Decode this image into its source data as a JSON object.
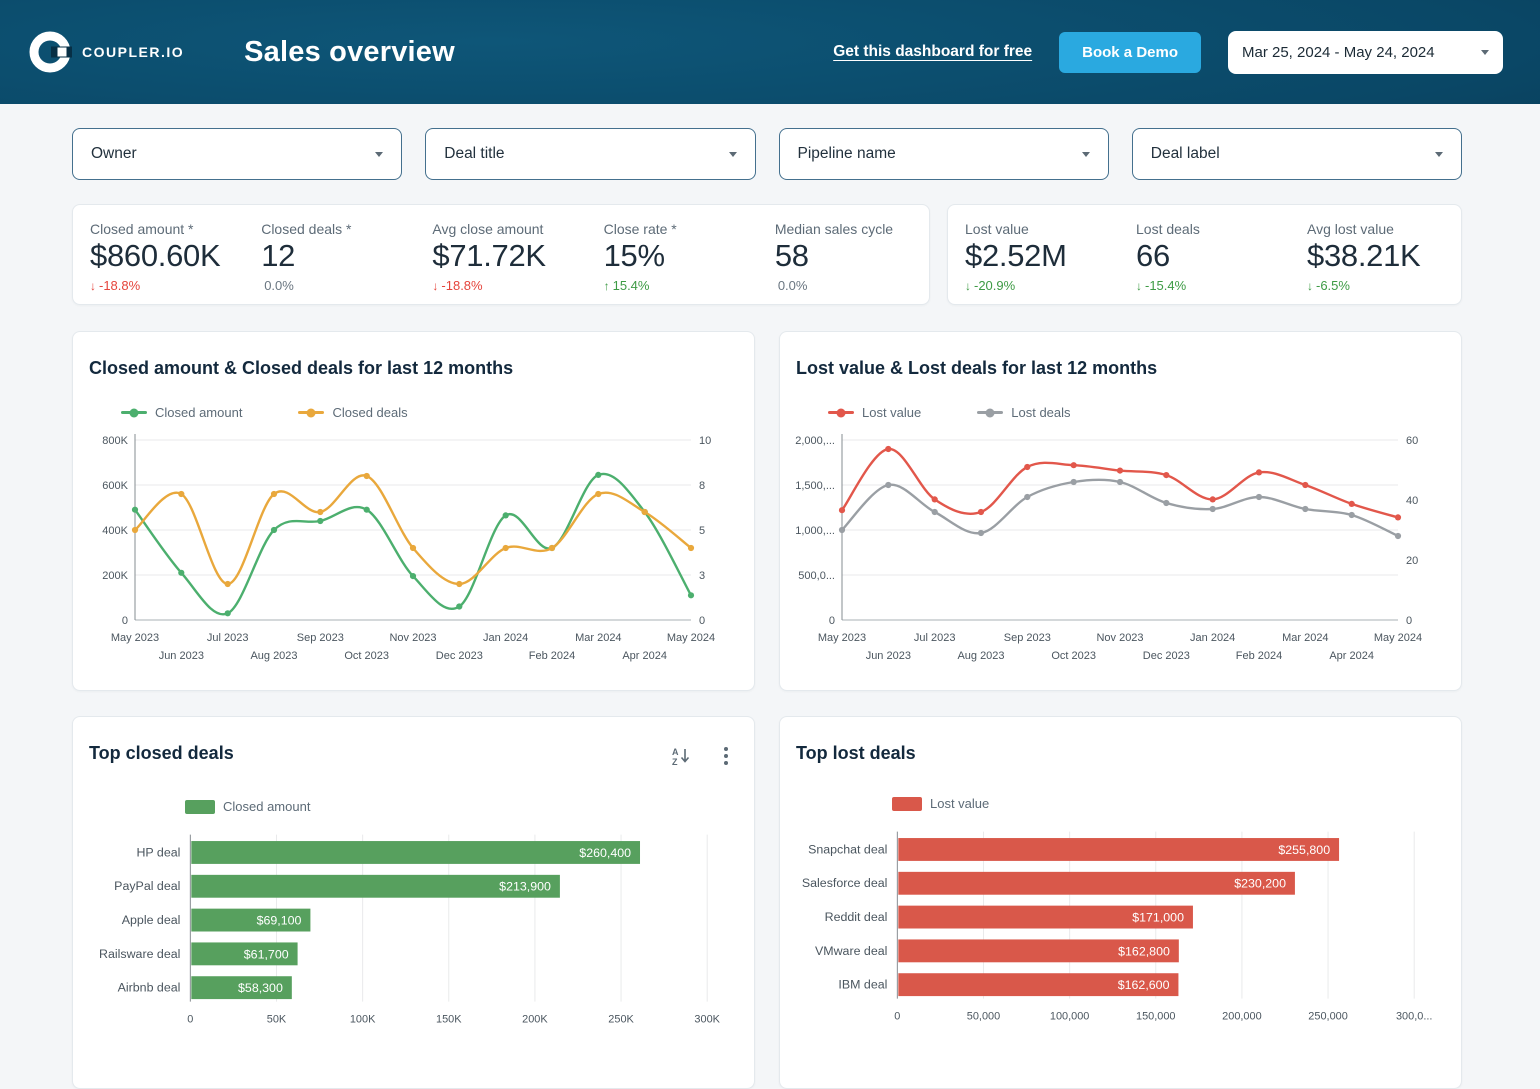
{
  "header": {
    "brand": "COUPLER.IO",
    "title": "Sales overview",
    "link": "Get this dashboard for free",
    "cta": "Book a Demo",
    "date_range": "Mar 25, 2024 - May 24, 2024"
  },
  "filters": [
    {
      "label": "Owner"
    },
    {
      "label": "Deal title"
    },
    {
      "label": "Pipeline name"
    },
    {
      "label": "Deal label"
    }
  ],
  "kpi_groups": [
    {
      "items": [
        {
          "label": "Closed amount *",
          "value": "$860.60K",
          "delta": "-18.8%",
          "trend": "down",
          "tone": "negative"
        },
        {
          "label": "Closed deals *",
          "value": "12",
          "delta": "0.0%",
          "trend": "flat",
          "tone": "neutral"
        },
        {
          "label": "Avg close amount",
          "value": "$71.72K",
          "delta": "-18.8%",
          "trend": "down",
          "tone": "negative"
        },
        {
          "label": "Close rate *",
          "value": "15%",
          "delta": "15.4%",
          "trend": "up",
          "tone": "positive"
        },
        {
          "label": "Median sales cycle",
          "value": "58",
          "delta": "0.0%",
          "trend": "flat",
          "tone": "neutral"
        }
      ]
    },
    {
      "items": [
        {
          "label": "Lost value",
          "value": "$2.52M",
          "delta": "-20.9%",
          "trend": "down",
          "tone": "positive"
        },
        {
          "label": "Lost deals",
          "value": "66",
          "delta": "-15.4%",
          "trend": "down",
          "tone": "positive"
        },
        {
          "label": "Avg lost value",
          "value": "$38.21K",
          "delta": "-6.5%",
          "trend": "down",
          "tone": "positive"
        }
      ]
    }
  ],
  "chart_data": [
    {
      "type": "line",
      "title": "Closed amount & Closed deals for last 12 months",
      "x": [
        "May 2023",
        "Jun 2023",
        "Jul 2023",
        "Aug 2023",
        "Sep 2023",
        "Oct 2023",
        "Nov 2023",
        "Dec 2023",
        "Jan 2024",
        "Feb 2024",
        "Mar 2024",
        "Apr 2024",
        "May 2024"
      ],
      "series": [
        {
          "name": "Closed amount",
          "axis": "left",
          "color": "#4caf6e",
          "values": [
            490000,
            210000,
            30000,
            400000,
            440000,
            490000,
            195000,
            60000,
            465000,
            320000,
            645000,
            480000,
            110000
          ]
        },
        {
          "name": "Closed deals",
          "axis": "right",
          "color": "#e9a83c",
          "values": [
            5,
            7,
            2,
            7,
            6,
            8,
            4,
            2,
            4,
            4,
            7,
            6,
            4
          ]
        }
      ],
      "left_axis": {
        "min": 0,
        "max": 800000,
        "ticks": [
          "800K",
          "600K",
          "400K",
          "200K",
          "0"
        ]
      },
      "right_axis": {
        "min": 0,
        "max": 10,
        "ticks": [
          "10",
          "8",
          "5",
          "3",
          "0"
        ]
      },
      "grid": true,
      "legend_position": "top"
    },
    {
      "type": "line",
      "title": "Lost value & Lost deals for last 12 months",
      "x": [
        "May 2023",
        "Jun 2023",
        "Jul 2023",
        "Aug 2023",
        "Sep 2023",
        "Oct 2023",
        "Nov 2023",
        "Dec 2023",
        "Jan 2024",
        "Feb 2024",
        "Mar 2024",
        "Apr 2024",
        "May 2024"
      ],
      "series": [
        {
          "name": "Lost value",
          "axis": "left",
          "color": "#e2574b",
          "values": [
            1220000,
            1900000,
            1340000,
            1200000,
            1700000,
            1720000,
            1660000,
            1610000,
            1340000,
            1640000,
            1500000,
            1290000,
            1140000
          ]
        },
        {
          "name": "Lost deals",
          "axis": "right",
          "color": "#9a9fa4",
          "values": [
            30,
            45,
            36,
            29,
            41,
            46,
            46,
            39,
            37,
            41,
            37,
            35,
            28
          ]
        }
      ],
      "left_axis": {
        "min": 0,
        "max": 2000000,
        "ticks": [
          "2,000,...",
          "1,500,...",
          "1,000,...",
          "500,0...",
          "0"
        ]
      },
      "right_axis": {
        "min": 0,
        "max": 60,
        "ticks": [
          "60",
          "40",
          "20",
          "0"
        ]
      },
      "grid": true,
      "legend_position": "top"
    },
    {
      "type": "bar",
      "title": "Top closed deals",
      "legend": "Closed amount",
      "color": "#57a05e",
      "categories": [
        "HP deal",
        "PayPal deal",
        "Apple deal",
        "Railsware deal",
        "Airbnb deal"
      ],
      "values": [
        260400,
        213900,
        69100,
        61700,
        58300
      ],
      "labels": [
        "$260,400",
        "$213,900",
        "$69,100",
        "$61,700",
        "$58,300"
      ],
      "x_ticks": [
        "0",
        "50K",
        "100K",
        "150K",
        "200K",
        "250K",
        "300K"
      ],
      "x_max": 300000,
      "grid": true
    },
    {
      "type": "bar",
      "title": "Top lost deals",
      "legend": "Lost value",
      "color": "#d9584a",
      "categories": [
        "Snapchat deal",
        "Salesforce deal",
        "Reddit deal",
        "VMware deal",
        "IBM deal"
      ],
      "values": [
        255800,
        230200,
        171000,
        162800,
        162600
      ],
      "labels": [
        "$255,800",
        "$230,200",
        "$171,000",
        "$162,800",
        "$162,600"
      ],
      "x_ticks": [
        "0",
        "50,000",
        "100,000",
        "150,000",
        "200,000",
        "250,000",
        "300,0..."
      ],
      "x_max": 300000,
      "grid": true
    }
  ]
}
